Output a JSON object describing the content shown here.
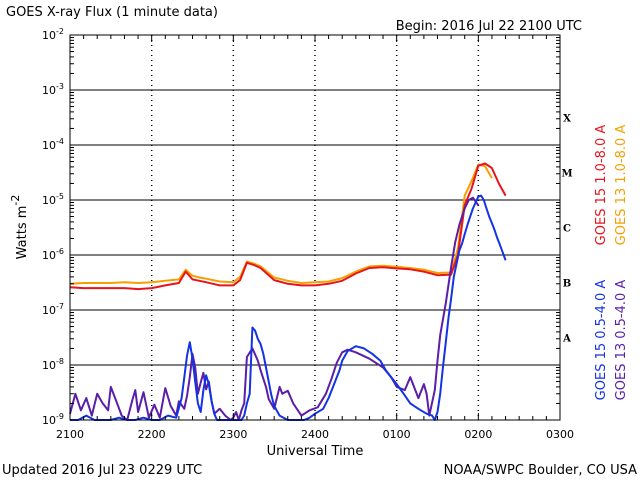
{
  "header": {
    "title": "GOES X-ray Flux (1 minute data)",
    "begin": "Begin: 2016 Jul 22 2100 UTC"
  },
  "footer": {
    "updated": "Updated 2016 Jul 23 0229 UTC",
    "source": "NOAA/SWPC Boulder, CO USA"
  },
  "colors": {
    "goes15_long": "#e8141c",
    "goes13_long": "#f5a000",
    "goes15_short": "#1432e6",
    "goes13_short": "#5a1ea8"
  },
  "chart_data": {
    "type": "line",
    "title": "GOES X-ray Flux (1 minute data)",
    "xlabel": "Universal Time",
    "ylabel": "Watts m-2",
    "ylabel_main": "Watts m",
    "ylabel_sup": "-2",
    "yscale": "log",
    "xlim": [
      0,
      360
    ],
    "ylim_exp": [
      -9,
      -2
    ],
    "x_unit": "minutes since 2016 Jul 22 2100 UTC",
    "x_ticks": [
      {
        "x": 0,
        "label": "2100"
      },
      {
        "x": 60,
        "label": "2200"
      },
      {
        "x": 120,
        "label": "2300"
      },
      {
        "x": 180,
        "label": "2400"
      },
      {
        "x": 240,
        "label": "0100"
      },
      {
        "x": 300,
        "label": "0200"
      },
      {
        "x": 360,
        "label": "0300"
      }
    ],
    "y_ticks": [
      {
        "exp": -9,
        "base": "10",
        "sup": "-9"
      },
      {
        "exp": -8,
        "base": "10",
        "sup": "-8"
      },
      {
        "exp": -7,
        "base": "10",
        "sup": "-7"
      },
      {
        "exp": -6,
        "base": "10",
        "sup": "-6"
      },
      {
        "exp": -5,
        "base": "10",
        "sup": "-5"
      },
      {
        "exp": -4,
        "base": "10",
        "sup": "-4"
      },
      {
        "exp": -3,
        "base": "10",
        "sup": "-3"
      },
      {
        "exp": -2,
        "base": "10",
        "sup": "-2"
      }
    ],
    "flare_classes": [
      {
        "label": "A",
        "exp": -7.5
      },
      {
        "label": "B",
        "exp": -6.5
      },
      {
        "label": "C",
        "exp": -5.5
      },
      {
        "label": "M",
        "exp": -4.5
      },
      {
        "label": "X",
        "exp": -3.5
      }
    ],
    "legend": [
      {
        "label": "GOES 15 1.0-8.0 A",
        "color_key": "goes15_long"
      },
      {
        "label": "GOES 13 1.0-8.0 A",
        "color_key": "goes13_long"
      },
      {
        "label": "GOES 15 0.5-4.0 A",
        "color_key": "goes15_short"
      },
      {
        "label": "GOES 13 0.5-4.0 A",
        "color_key": "goes13_short"
      }
    ],
    "series": [
      {
        "name": "GOES 13 1.0-8.0 A",
        "color_key": "goes13_long",
        "x": [
          0,
          10,
          20,
          30,
          40,
          50,
          60,
          70,
          80,
          85,
          90,
          95,
          100,
          105,
          110,
          120,
          125,
          130,
          135,
          140,
          150,
          160,
          170,
          180,
          190,
          200,
          210,
          220,
          230,
          240,
          250,
          260,
          270,
          280,
          285,
          290,
          295,
          300,
          305,
          310
        ],
        "y": [
          3e-07,
          3.1e-07,
          3.1e-07,
          3.1e-07,
          3.2e-07,
          3.1e-07,
          3.2e-07,
          3.4e-07,
          3.6e-07,
          5.4e-07,
          4.2e-07,
          3.9e-07,
          3.7e-07,
          3.5e-07,
          3.3e-07,
          3.2e-07,
          4e-07,
          7.6e-07,
          7e-07,
          6.2e-07,
          3.9e-07,
          3.4e-07,
          3.1e-07,
          3.2e-07,
          3.3e-07,
          3.8e-07,
          5e-07,
          6.2e-07,
          6.4e-07,
          6.1e-07,
          5.8e-07,
          5.4e-07,
          4.7e-07,
          4.8e-07,
          1.3e-06,
          1.2e-05,
          2.2e-05,
          4.4e-05,
          4.1e-05,
          2.5e-05
        ]
      },
      {
        "name": "GOES 15 1.0-8.0 A",
        "color_key": "goes15_long",
        "x": [
          0,
          10,
          20,
          30,
          40,
          50,
          60,
          70,
          80,
          85,
          90,
          95,
          100,
          105,
          110,
          120,
          125,
          130,
          135,
          140,
          150,
          160,
          170,
          180,
          190,
          200,
          210,
          220,
          230,
          240,
          250,
          260,
          270,
          280,
          285,
          290,
          295,
          300,
          305,
          310,
          315,
          320
        ],
        "y": [
          2.6e-07,
          2.5e-07,
          2.5e-07,
          2.5e-07,
          2.5e-07,
          2.4e-07,
          2.5e-07,
          2.8e-07,
          3.1e-07,
          5e-07,
          3.6e-07,
          3.4e-07,
          3.2e-07,
          3e-07,
          2.8e-07,
          2.8e-07,
          3.5e-07,
          7.2e-07,
          6.6e-07,
          5.8e-07,
          3.5e-07,
          3e-07,
          2.8e-07,
          2.8e-07,
          3e-07,
          3.4e-07,
          4.6e-07,
          5.8e-07,
          6e-07,
          5.7e-07,
          5.5e-07,
          5e-07,
          4.3e-07,
          4.4e-07,
          1e-06,
          8e-06,
          1.6e-05,
          4.2e-05,
          4.6e-05,
          3.8e-05,
          2e-05,
          1.2e-05
        ]
      },
      {
        "name": "GOES 13 0.5-4.0 A",
        "color_key": "goes13_short",
        "x": [
          0,
          4,
          8,
          12,
          16,
          20,
          24,
          28,
          30,
          34,
          38,
          42,
          46,
          48,
          50,
          54,
          58,
          62,
          66,
          70,
          74,
          78,
          80,
          84,
          86,
          88,
          90,
          92,
          94,
          96,
          98,
          100,
          102,
          104,
          106,
          110,
          114,
          118,
          120,
          122,
          124,
          126,
          128,
          130,
          134,
          138,
          140,
          144,
          146,
          150,
          154,
          156,
          160,
          164,
          170,
          176,
          182,
          188,
          192,
          196,
          200,
          204,
          210,
          220,
          230,
          236,
          240,
          246,
          250,
          256,
          260,
          262,
          264,
          268,
          270,
          272,
          276,
          280,
          283,
          286,
          288,
          290,
          293,
          296,
          300
        ],
        "y": [
          1.3e-09,
          3e-09,
          1.5e-09,
          2.5e-09,
          1.2e-09,
          3e-09,
          2e-09,
          1.5e-09,
          4e-09,
          2.2e-09,
          1.2e-09,
          1e-09,
          2.4e-09,
          3.5e-09,
          1.4e-09,
          3.2e-09,
          1.1e-09,
          1.9e-09,
          1.1e-09,
          3.8e-09,
          1.8e-09,
          1.2e-09,
          2.2e-09,
          1.6e-09,
          2.8e-09,
          6e-09,
          1.6e-08,
          9e-09,
          3e-09,
          4.8e-09,
          7.2e-09,
          3.6e-09,
          5e-09,
          2.2e-09,
          1.3e-09,
          1.6e-09,
          1.2e-09,
          1e-09,
          1.1e-09,
          1.4e-09,
          1e-09,
          1.5e-09,
          2e-09,
          1.4e-08,
          2e-08,
          1.2e-08,
          8e-09,
          4e-09,
          2.4e-09,
          1.6e-09,
          4e-09,
          3e-09,
          3.4e-09,
          2e-09,
          1.2e-09,
          1.5e-09,
          1.7e-09,
          3e-09,
          5.5e-09,
          1.1e-08,
          1.7e-08,
          1.9e-08,
          1.7e-08,
          1.3e-08,
          9e-09,
          6e-09,
          4e-09,
          3.5e-09,
          6e-09,
          2.5e-09,
          4.5e-09,
          3e-09,
          1.2e-09,
          3.5e-09,
          1.2e-08,
          3.5e-08,
          1.3e-07,
          6e-07,
          1.7e-06,
          3.5e-06,
          5e-06,
          7e-06,
          1e-05,
          1.1e-05,
          8e-06
        ]
      },
      {
        "name": "GOES 15 0.5-4.0 A",
        "color_key": "goes15_short",
        "x": [
          0,
          6,
          12,
          18,
          24,
          30,
          36,
          42,
          48,
          54,
          60,
          66,
          72,
          78,
          82,
          84,
          86,
          88,
          90,
          92,
          94,
          96,
          98,
          100,
          102,
          104,
          106,
          108,
          112,
          118,
          124,
          126,
          128,
          130,
          132,
          134,
          136,
          138,
          140,
          142,
          144,
          146,
          148,
          150,
          154,
          160,
          166,
          172,
          176,
          180,
          186,
          190,
          194,
          198,
          200,
          204,
          210,
          216,
          222,
          228,
          232,
          236,
          240,
          246,
          250,
          256,
          262,
          266,
          268,
          270,
          272,
          274,
          276,
          278,
          280,
          282,
          284,
          286,
          288,
          290,
          292,
          294,
          296,
          298,
          300,
          302,
          304,
          306,
          308,
          310,
          312,
          314,
          316,
          318,
          320
        ],
        "y": [
          1e-09,
          1e-09,
          1.2e-09,
          1e-09,
          1e-09,
          1e-09,
          1.1e-09,
          1e-09,
          1e-09,
          1.1e-09,
          1e-09,
          1e-09,
          1.2e-09,
          1.1e-09,
          2.5e-09,
          6e-09,
          1.5e-08,
          2.6e-08,
          1.3e-08,
          5e-09,
          2e-09,
          1.4e-09,
          3.5e-09,
          6.5e-09,
          4.5e-09,
          2.2e-09,
          1.3e-09,
          1e-09,
          1e-09,
          1e-09,
          1e-09,
          1e-09,
          1.2e-09,
          2e-09,
          3e-09,
          4.8e-08,
          4.2e-08,
          3e-08,
          2.4e-08,
          1.6e-08,
          9e-09,
          5e-09,
          2.8e-09,
          1.8e-09,
          1.2e-09,
          1e-09,
          1e-09,
          1e-09,
          1.1e-09,
          1.3e-09,
          1.6e-09,
          2.5e-09,
          4.5e-09,
          8e-09,
          1.2e-08,
          1.8e-08,
          2.2e-08,
          2e-08,
          1.6e-08,
          1.2e-08,
          8e-09,
          6e-09,
          4.5e-09,
          2.8e-09,
          2e-09,
          1.6e-09,
          1.3e-09,
          1.2e-09,
          1e-09,
          1.4e-09,
          3e-09,
          9e-09,
          2.5e-08,
          7e-08,
          1.6e-07,
          4e-07,
          7e-07,
          1.2e-06,
          1.6e-06,
          2.4e-06,
          3.5e-06,
          5e-06,
          7e-06,
          9e-06,
          1.15e-05,
          1.2e-05,
          1e-05,
          7e-06,
          5e-06,
          3.8e-06,
          2.8e-06,
          2e-06,
          1.5e-06,
          1.1e-06,
          8e-07
        ]
      }
    ]
  }
}
